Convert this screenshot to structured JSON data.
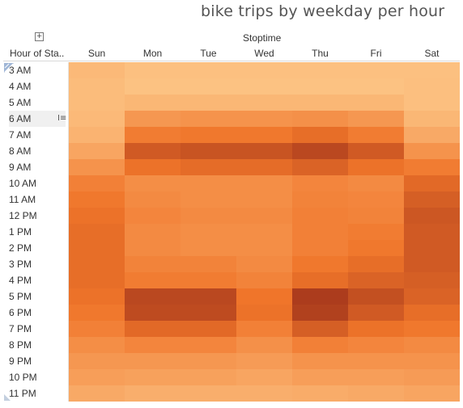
{
  "chart_data": {
    "type": "heatmap",
    "title": "bike trips by weekday per hour",
    "column_group_label": "Stoptime",
    "row_header": "Hour of Sta..",
    "columns": [
      "Sun",
      "Mon",
      "Tue",
      "Wed",
      "Thu",
      "Fri",
      "Sat"
    ],
    "rows": [
      "3 AM",
      "4 AM",
      "5 AM",
      "6 AM",
      "7 AM",
      "8 AM",
      "9 AM",
      "10 AM",
      "11 AM",
      "12 PM",
      "1 PM",
      "2 PM",
      "3 PM",
      "4 PM",
      "5 PM",
      "6 PM",
      "7 PM",
      "8 PM",
      "9 PM",
      "10 PM",
      "11 PM"
    ],
    "values": [
      [
        0.1,
        0.05,
        0.05,
        0.05,
        0.05,
        0.05,
        0.05
      ],
      [
        0.08,
        0.04,
        0.04,
        0.04,
        0.04,
        0.04,
        0.06
      ],
      [
        0.08,
        0.12,
        0.12,
        0.12,
        0.12,
        0.12,
        0.06
      ],
      [
        0.1,
        0.35,
        0.38,
        0.38,
        0.4,
        0.35,
        0.12
      ],
      [
        0.15,
        0.55,
        0.58,
        0.58,
        0.65,
        0.55,
        0.22
      ],
      [
        0.25,
        0.78,
        0.82,
        0.82,
        0.9,
        0.78,
        0.38
      ],
      [
        0.38,
        0.62,
        0.66,
        0.66,
        0.72,
        0.62,
        0.55
      ],
      [
        0.52,
        0.42,
        0.42,
        0.42,
        0.48,
        0.45,
        0.68
      ],
      [
        0.58,
        0.45,
        0.42,
        0.42,
        0.5,
        0.48,
        0.75
      ],
      [
        0.62,
        0.48,
        0.45,
        0.45,
        0.52,
        0.5,
        0.8
      ],
      [
        0.65,
        0.45,
        0.42,
        0.42,
        0.52,
        0.55,
        0.78
      ],
      [
        0.65,
        0.45,
        0.42,
        0.42,
        0.52,
        0.58,
        0.78
      ],
      [
        0.65,
        0.5,
        0.5,
        0.45,
        0.58,
        0.65,
        0.78
      ],
      [
        0.65,
        0.55,
        0.55,
        0.5,
        0.65,
        0.72,
        0.75
      ],
      [
        0.62,
        0.9,
        0.9,
        0.6,
        0.98,
        0.85,
        0.72
      ],
      [
        0.58,
        0.88,
        0.88,
        0.62,
        0.95,
        0.78,
        0.65
      ],
      [
        0.52,
        0.68,
        0.68,
        0.52,
        0.75,
        0.62,
        0.58
      ],
      [
        0.42,
        0.48,
        0.48,
        0.4,
        0.52,
        0.48,
        0.45
      ],
      [
        0.35,
        0.35,
        0.35,
        0.32,
        0.38,
        0.38,
        0.38
      ],
      [
        0.3,
        0.28,
        0.28,
        0.25,
        0.3,
        0.3,
        0.32
      ],
      [
        0.22,
        0.18,
        0.18,
        0.18,
        0.2,
        0.22,
        0.25
      ]
    ],
    "color_low": "#fdc788",
    "color_mid": "#f0752a",
    "color_high": "#a8391c",
    "selected_row": "6 AM"
  },
  "icons": {
    "expand": "plus-square-icon",
    "row_menu": "bars-icon"
  },
  "glyphs": {
    "expand": "+",
    "row_menu": "I≡"
  }
}
